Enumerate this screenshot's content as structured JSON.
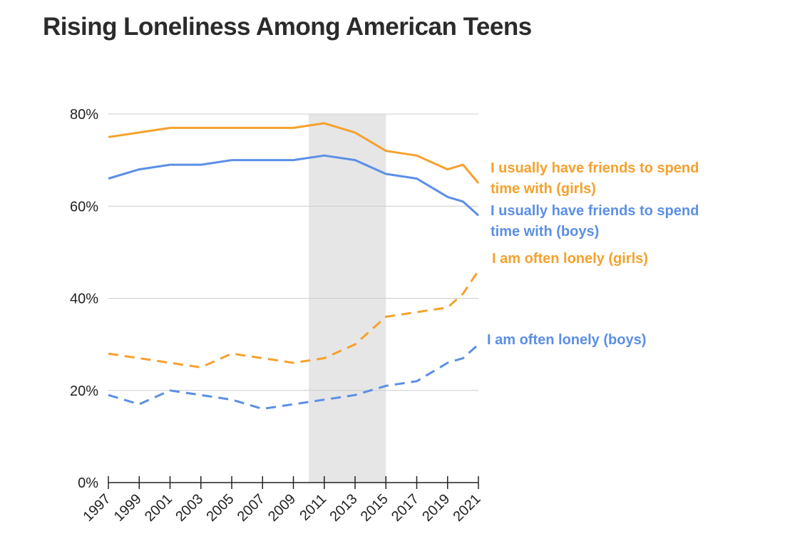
{
  "chart_data": {
    "type": "line",
    "title": "Rising Loneliness Among American Teens",
    "xlabel": "",
    "ylabel": "",
    "x": [
      1997,
      1999,
      2001,
      2003,
      2005,
      2007,
      2009,
      2011,
      2013,
      2015,
      2017,
      2019,
      2020,
      2021
    ],
    "x_tick_labels": [
      "1997",
      "1999",
      "2001",
      "2003",
      "2005",
      "2007",
      "2009",
      "2011",
      "2013",
      "2015",
      "2017",
      "2019",
      "2021"
    ],
    "xlim": [
      1997,
      2021
    ],
    "ylim": [
      0,
      80
    ],
    "y_ticks": [
      0,
      20,
      40,
      60,
      80
    ],
    "y_tick_labels": [
      "0%",
      "20%",
      "40%",
      "60%",
      "80%"
    ],
    "grid": true,
    "shaded_region": [
      2010,
      2015
    ],
    "series": [
      {
        "name": "I usually have friends to spend time with (girls)",
        "label_lines": [
          "I usually have friends to spend",
          "time with (girls)"
        ],
        "color": "#f5a12d",
        "dashed": false,
        "values": [
          75,
          76,
          77,
          77,
          77,
          77,
          77,
          78,
          76,
          72,
          71,
          68,
          69,
          65
        ]
      },
      {
        "name": "I usually have friends to spend time with (boys)",
        "label_lines": [
          "I usually have friends to spend",
          "time with (boys)"
        ],
        "color": "#5b8fe6",
        "dashed": false,
        "values": [
          66,
          68,
          69,
          69,
          70,
          70,
          70,
          71,
          70,
          67,
          66,
          62,
          61,
          58
        ]
      },
      {
        "name": "I am often lonely (girls)",
        "label_lines": [
          "I am often lonely (girls)"
        ],
        "color": "#f5a12d",
        "dashed": true,
        "values": [
          28,
          27,
          26,
          25,
          28,
          27,
          26,
          27,
          30,
          36,
          37,
          38,
          41,
          46
        ]
      },
      {
        "name": "I am often lonely (boys)",
        "label_lines": [
          "I am often lonely (boys)"
        ],
        "color": "#5b8fe6",
        "dashed": true,
        "values": [
          19,
          17,
          20,
          19,
          18,
          16,
          17,
          18,
          19,
          21,
          22,
          26,
          27,
          30
        ]
      }
    ]
  }
}
